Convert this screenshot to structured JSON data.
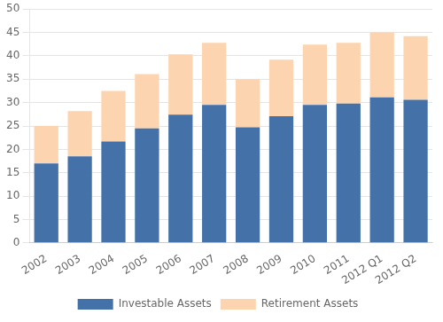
{
  "chart_data": {
    "type": "bar",
    "stacked": true,
    "categories": [
      "2002",
      "2003",
      "2004",
      "2005",
      "2006",
      "2007",
      "2008",
      "2009",
      "2010",
      "2011",
      "2012 Q1",
      "2012 Q2"
    ],
    "series": [
      {
        "name": "Investable Assets",
        "color": "#4472a8",
        "values": [
          17.0,
          18.5,
          21.7,
          24.5,
          27.4,
          29.5,
          24.7,
          27.1,
          29.5,
          29.8,
          31.1,
          30.6
        ]
      },
      {
        "name": "Retirement Assets",
        "color": "#fcd5b0",
        "values": [
          8.0,
          9.7,
          10.8,
          11.6,
          12.9,
          13.3,
          10.3,
          12.1,
          12.9,
          13.0,
          13.9,
          13.6
        ]
      }
    ],
    "ylim": [
      0,
      50
    ],
    "yticks": [
      0,
      5,
      10,
      15,
      20,
      25,
      30,
      35,
      40,
      45,
      50
    ],
    "grid": true,
    "legend": "bottom"
  }
}
